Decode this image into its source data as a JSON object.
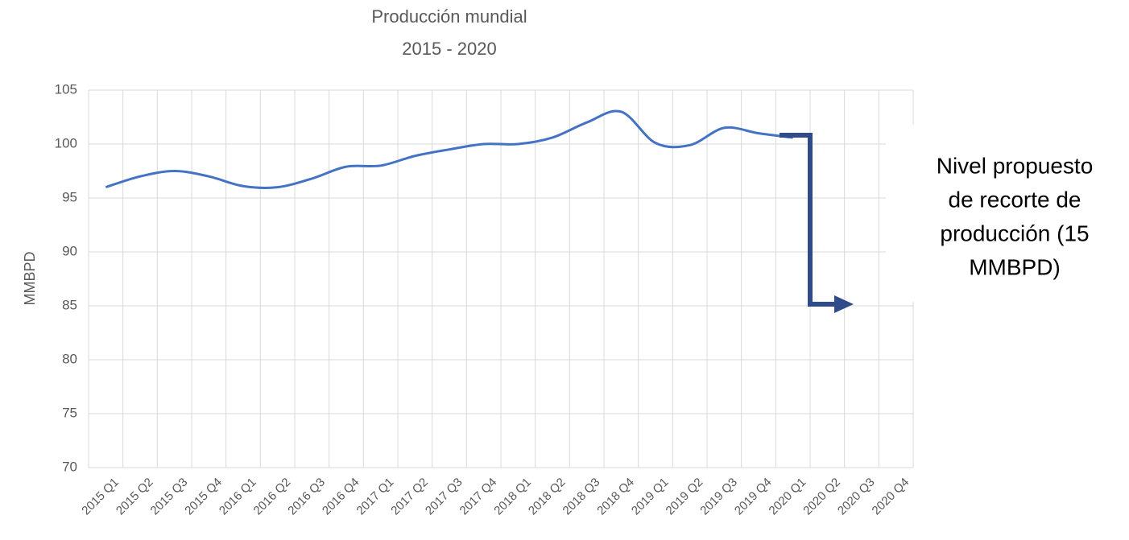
{
  "chart_data": {
    "type": "line",
    "title": "Producción mundial",
    "subtitle": "2015 - 2020",
    "y_label": "MMBPD",
    "categories": [
      "2015 Q1",
      "2015 Q2",
      "2015 Q3",
      "2015 Q4",
      "2016 Q1",
      "2016 Q2",
      "2016 Q3",
      "2016 Q4",
      "2017 Q1",
      "2017 Q2",
      "2017 Q3",
      "2017 Q4",
      "2018 Q1",
      "2018 Q2",
      "2018 Q3",
      "2018 Q4",
      "2019 Q1",
      "2019 Q2",
      "2019 Q3",
      "2019 Q4",
      "2020 Q1",
      "2020 Q2",
      "2020 Q3",
      "2020 Q4"
    ],
    "series": [
      {
        "name": "Producción mundial",
        "color": "#4472c4",
        "values": [
          96,
          97,
          97.5,
          97,
          96.1,
          96,
          96.8,
          97.9,
          98,
          98.9,
          99.5,
          100,
          100,
          100.6,
          102,
          103,
          100.1,
          99.9,
          101.5,
          101,
          100.6,
          null,
          null,
          null
        ]
      }
    ],
    "ylim": [
      70,
      105
    ],
    "yticks": [
      70,
      75,
      80,
      85,
      90,
      95,
      100,
      105
    ],
    "grid": true,
    "annotation_lines": [
      "Nivel propuesto",
      "de recorte de",
      "producción (15",
      "MMBPD)"
    ]
  }
}
